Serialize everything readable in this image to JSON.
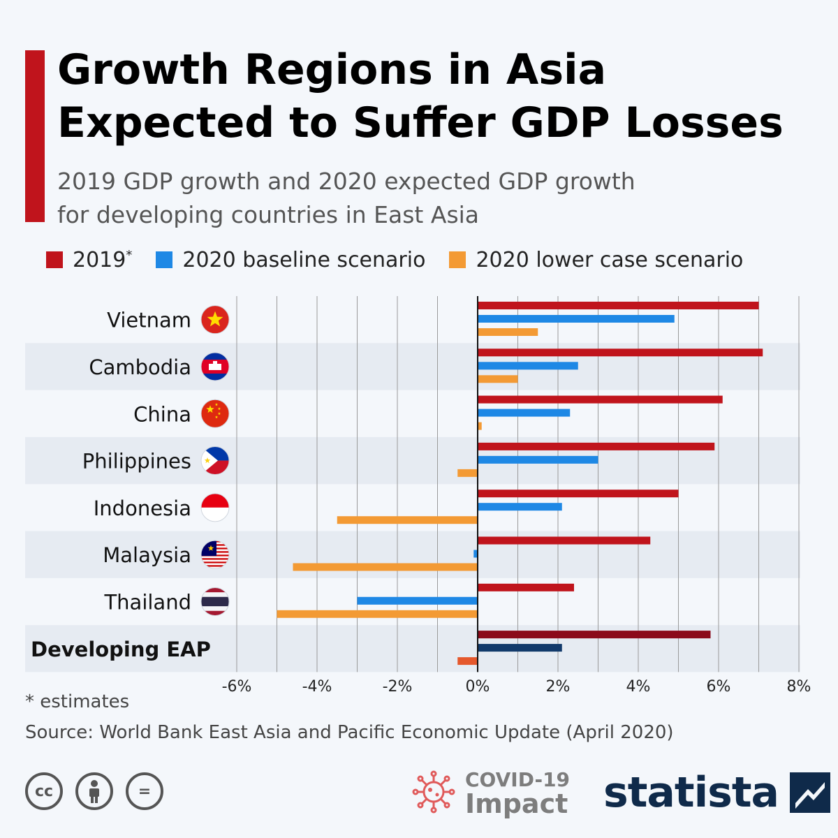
{
  "header": {
    "title_line1": "Growth Regions in Asia",
    "title_line2": "Expected to Suffer GDP Losses",
    "subtitle_line1": "2019 GDP growth and 2020 expected GDP growth",
    "subtitle_line2": "for developing countries in East Asia"
  },
  "legend": {
    "item1": "2019",
    "item1_sup": "*",
    "item2": "2020 baseline scenario",
    "item3": "2020 lower case scenario"
  },
  "chart_data": {
    "type": "bar",
    "orientation": "horizontal",
    "categories": [
      "Vietnam",
      "Cambodia",
      "China",
      "Philippines",
      "Indonesia",
      "Malaysia",
      "Thailand",
      "Developing EAP"
    ],
    "series": [
      {
        "name": "2019*",
        "color": "#c0141c",
        "values": [
          7.0,
          7.1,
          6.1,
          5.9,
          5.0,
          4.3,
          2.4,
          5.8
        ]
      },
      {
        "name": "2020 baseline scenario",
        "color": "#1e88e5",
        "values": [
          4.9,
          2.5,
          2.3,
          3.0,
          2.1,
          -0.1,
          -3.0,
          2.1
        ]
      },
      {
        "name": "2020 lower case scenario",
        "color": "#f39a34",
        "values": [
          1.5,
          1.0,
          0.1,
          -0.5,
          -3.5,
          -4.6,
          -5.0,
          -0.5
        ]
      }
    ],
    "highlight_category_colors": [
      "#8b0a1a",
      "#123a6b",
      "#e5582c"
    ],
    "xlim": [
      -6,
      8
    ],
    "xticks": [
      "-6%",
      "-4%",
      "-2%",
      "0%",
      "2%",
      "4%",
      "6%",
      "8%"
    ],
    "grid": true
  },
  "flags": [
    "vietnam-flag-icon",
    "cambodia-flag-icon",
    "china-flag-icon",
    "philippines-flag-icon",
    "indonesia-flag-icon",
    "malaysia-flag-icon",
    "thailand-flag-icon"
  ],
  "footer": {
    "footnote": "* estimates",
    "source": "Source: World Bank East Asia and Pacific Economic Update (April 2020)",
    "cc_icons": [
      "cc-icon",
      "attribution-icon",
      "no-derivatives-icon"
    ],
    "cc_label": "cc",
    "nd_label": "=",
    "covid_line1": "COVID-19",
    "covid_line2": "Impact",
    "brand": "statista"
  }
}
